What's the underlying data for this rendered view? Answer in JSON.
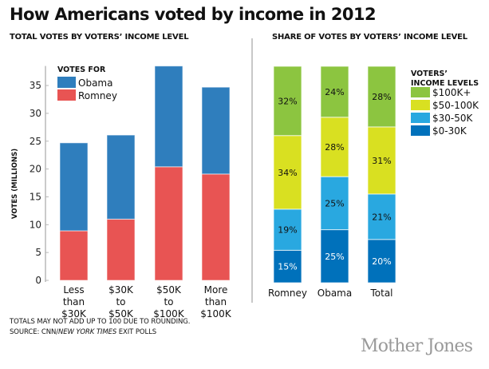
{
  "title": "How Americans voted by income in 2012",
  "left_subhead": "TOTAL VOTES BY VOTERS’ INCOME LEVEL",
  "right_subhead": "SHARE OF VOTES BY VOTERS’ INCOME LEVEL",
  "footnote_line1": "TOTALS MAY NOT ADD UP TO 100 DUE TO ROUNDING.",
  "footnote_source_prefix": "SOURCE: CNN/",
  "footnote_source_italic": "NEW YORK TIMES",
  "footnote_source_suffix": " EXIT POLLS",
  "logo": "Mother Jones",
  "chart_data": [
    {
      "type": "bar",
      "stacked": true,
      "title": "TOTAL VOTES BY VOTERS’ INCOME LEVEL",
      "xlabel": "",
      "ylabel": "VOTES (MILLIONS)",
      "ylim": [
        0,
        38.5
      ],
      "yticks": [
        0,
        5,
        10,
        15,
        20,
        25,
        30,
        35
      ],
      "categories": [
        [
          "Less",
          "than",
          "$30K"
        ],
        [
          "$30K",
          "to",
          "$50K"
        ],
        [
          "$50K",
          "to",
          "$100K"
        ],
        [
          "More",
          "than",
          "$100K"
        ]
      ],
      "legend_title": "VOTES FOR",
      "legend_position": "top-left",
      "grid": false,
      "series": [
        {
          "name": "Romney",
          "color": "#e85453",
          "values": [
            8.9,
            11.0,
            20.4,
            19.1
          ]
        },
        {
          "name": "Obama",
          "color": "#2f7ebd",
          "values": [
            15.8,
            15.1,
            18.1,
            15.6
          ]
        }
      ],
      "legend_order": [
        "Obama",
        "Romney"
      ]
    },
    {
      "type": "bar",
      "stacked": true,
      "percent": true,
      "title": "SHARE OF VOTES BY VOTERS’ INCOME LEVEL",
      "categories": [
        "Romney",
        "Obama",
        "Total"
      ],
      "legend_title": [
        "VOTERS’",
        "INCOME LEVELS"
      ],
      "legend_position": "right",
      "grid": false,
      "series": [
        {
          "name": "$0-30K",
          "color": "#0071bb",
          "light_text": true,
          "values": [
            15,
            25,
            20
          ]
        },
        {
          "name": "$30-50K",
          "color": "#29a8e0",
          "light_text": false,
          "values": [
            19,
            25,
            21
          ]
        },
        {
          "name": "$50-100K",
          "color": "#d9e021",
          "light_text": false,
          "values": [
            34,
            28,
            31
          ]
        },
        {
          "name": "$100K+",
          "color": "#8cc540",
          "light_text": false,
          "values": [
            32,
            24,
            28
          ]
        }
      ],
      "legend_order": [
        "$100K+",
        "$50-100K",
        "$30-50K",
        "$0-30K"
      ]
    }
  ]
}
